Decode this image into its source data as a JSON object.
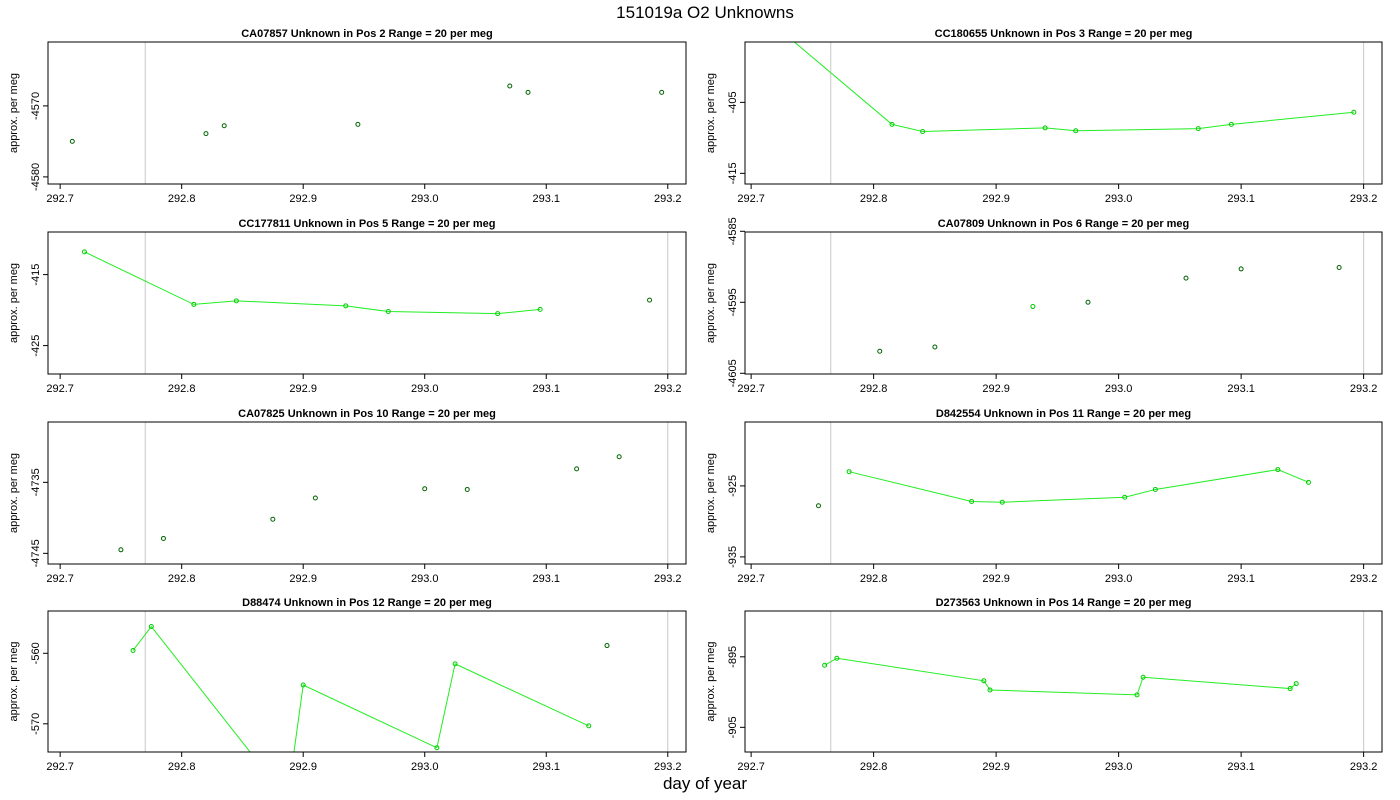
{
  "page": {
    "title": "151019a  O2 Unknowns",
    "xlabel": "day of year"
  },
  "chart_data": [
    {
      "type": "scatter",
      "title": "CA07857    Unknown in Pos 2         Range = 20 per meg",
      "ylabel": "approx. per meg",
      "xlim": [
        292.69,
        293.215
      ],
      "ylim": [
        -4581.0,
        -4561.0
      ],
      "xticks": [
        "292.7",
        "292.8",
        "292.9",
        "293.0",
        "293.1",
        "293.2"
      ],
      "yticks": [
        "-4570",
        "-4580"
      ],
      "vline": 292.77,
      "vline_right": null,
      "connect": false,
      "marker_color": "#006400",
      "x": [
        292.71,
        292.82,
        292.835,
        292.945,
        293.07,
        293.085,
        293.195
      ],
      "y": [
        -4575.0,
        -4573.9,
        -4572.8,
        -4572.6,
        -4567.2,
        -4568.1,
        -4568.1
      ]
    },
    {
      "type": "line",
      "title": "CC180655    Unknown in Pos 3         Range = 20 per meg",
      "ylabel": "approx. per meg",
      "xlim": [
        292.695,
        293.215
      ],
      "ylim": [
        -416.5,
        -396.5
      ],
      "xticks": [
        "292.7",
        "292.8",
        "292.9",
        "293.0",
        "293.1",
        "293.2"
      ],
      "yticks": [
        "-405",
        "-415"
      ],
      "vline": 292.765,
      "vline_right": 293.2,
      "connect": true,
      "marker_color": "#00cc00",
      "x": [
        292.725,
        292.815,
        292.84,
        292.94,
        292.965,
        293.065,
        293.092,
        293.192
      ],
      "y": [
        -395.0,
        -408.1,
        -409.1,
        -408.6,
        -409.0,
        -408.7,
        -408.1,
        -406.4
      ]
    },
    {
      "type": "line",
      "title": "CC177811    Unknown in Pos 5         Range = 20 per meg",
      "ylabel": "approx. per meg",
      "xlim": [
        292.69,
        293.215
      ],
      "ylim": [
        -429.0,
        -409.0
      ],
      "xticks": [
        "292.7",
        "292.8",
        "292.9",
        "293.0",
        "293.1",
        "293.2"
      ],
      "yticks": [
        "-415",
        "-425"
      ],
      "vline": 292.77,
      "vline_right": 293.2,
      "connect": true,
      "marker_color": "#00cc00",
      "x": [
        292.72,
        292.81,
        292.845,
        292.935,
        292.97,
        293.06,
        293.095
      ],
      "y": [
        -411.8,
        -419.2,
        -418.7,
        -419.4,
        -420.2,
        -420.5,
        -419.9
      ],
      "extra_points": [
        {
          "x": 293.185,
          "y": -418.6,
          "color": "#006400"
        }
      ]
    },
    {
      "type": "scatter",
      "title": "CA07809    Unknown in Pos 6         Range = 20 per meg",
      "ylabel": "approx. per meg",
      "xlim": [
        292.695,
        293.215
      ],
      "ylim": [
        -4605.1,
        -4585.1
      ],
      "xticks": [
        "292.7",
        "292.8",
        "292.9",
        "293.0",
        "293.1",
        "293.2"
      ],
      "yticks": [
        "-4585",
        "-4595",
        "-4605"
      ],
      "vline": 292.765,
      "vline_right": 293.2,
      "connect": false,
      "marker_color": "#006400",
      "x": [
        292.805,
        292.85,
        292.93,
        292.975,
        293.055,
        293.1,
        293.18
      ],
      "y": [
        -4601.9,
        -4601.3,
        -4595.6,
        -4595.0,
        -4591.6,
        -4590.3,
        -4590.1
      ],
      "point_colors": [
        "#006400",
        "#006400",
        "#00cc00",
        "#006400",
        "#006400",
        "#006400",
        "#006400"
      ]
    },
    {
      "type": "scatter",
      "title": "CA07825    Unknown in Pos 10         Range = 20 per meg",
      "ylabel": "approx. per meg",
      "xlim": [
        292.69,
        293.215
      ],
      "ylim": [
        -4746.5,
        -4726.5
      ],
      "xticks": [
        "292.7",
        "292.8",
        "292.9",
        "293.0",
        "293.1",
        "293.2"
      ],
      "yticks": [
        "-4735",
        "-4745"
      ],
      "vline": 292.77,
      "vline_right": 293.2,
      "connect": false,
      "marker_color": "#006400",
      "x": [
        292.75,
        292.785,
        292.875,
        292.91,
        293.0,
        293.035,
        293.125,
        293.16
      ],
      "y": [
        -4744.5,
        -4742.9,
        -4740.2,
        -4737.2,
        -4735.9,
        -4736.0,
        -4733.1,
        -4731.4
      ]
    },
    {
      "type": "line",
      "title": "D842554    Unknown in Pos 11         Range = 20 per meg",
      "ylabel": "approx. per meg",
      "xlim": [
        292.695,
        293.215
      ],
      "ylim": [
        -936.0,
        -916.0
      ],
      "xticks": [
        "292.7",
        "292.8",
        "292.9",
        "293.0",
        "293.1",
        "293.2"
      ],
      "yticks": [
        "-925",
        "-935"
      ],
      "vline": 292.765,
      "vline_right": null,
      "connect": true,
      "marker_color": "#00cc00",
      "x": [
        292.78,
        292.88,
        292.905,
        293.005,
        293.03,
        293.13,
        293.155
      ],
      "y": [
        -923.0,
        -927.2,
        -927.3,
        -926.6,
        -925.5,
        -922.7,
        -924.5
      ],
      "extra_points": [
        {
          "x": 292.755,
          "y": -927.8,
          "color": "#006400"
        }
      ]
    },
    {
      "type": "line",
      "title": "D88474    Unknown in Pos 12         Range = 20 per meg",
      "ylabel": "approx. per meg",
      "xlim": [
        292.69,
        293.215
      ],
      "ylim": [
        -574.0,
        -554.0
      ],
      "xticks": [
        "292.7",
        "292.8",
        "292.9",
        "293.0",
        "293.1",
        "293.2"
      ],
      "yticks": [
        "-560",
        "-570"
      ],
      "vline": 292.77,
      "vline_right": 293.2,
      "connect": true,
      "marker_color": "#00cc00",
      "x": [
        292.76,
        292.775,
        292.87,
        292.89,
        292.9,
        293.01,
        293.025,
        293.135
      ],
      "y": [
        -559.6,
        -556.2,
        -577.0,
        -577.0,
        -564.5,
        -573.4,
        -561.5,
        -570.3
      ],
      "extra_points": [
        {
          "x": 293.15,
          "y": -558.9,
          "color": "#006400"
        }
      ]
    },
    {
      "type": "line",
      "title": "D273563    Unknown in Pos 14         Range = 20 per meg",
      "ylabel": "approx. per meg",
      "xlim": [
        292.695,
        293.215
      ],
      "ylim": [
        -908.5,
        -888.5
      ],
      "xticks": [
        "292.7",
        "292.8",
        "292.9",
        "293.0",
        "293.1",
        "293.2"
      ],
      "yticks": [
        "-895",
        "-905"
      ],
      "vline": 292.765,
      "vline_right": 293.2,
      "connect": true,
      "marker_color": "#00cc00",
      "x": [
        292.76,
        292.77,
        292.89,
        292.895,
        293.015,
        293.02,
        293.14,
        293.145
      ],
      "y": [
        -896.2,
        -895.2,
        -898.4,
        -899.7,
        -900.4,
        -897.9,
        -899.5,
        -898.8
      ]
    }
  ]
}
